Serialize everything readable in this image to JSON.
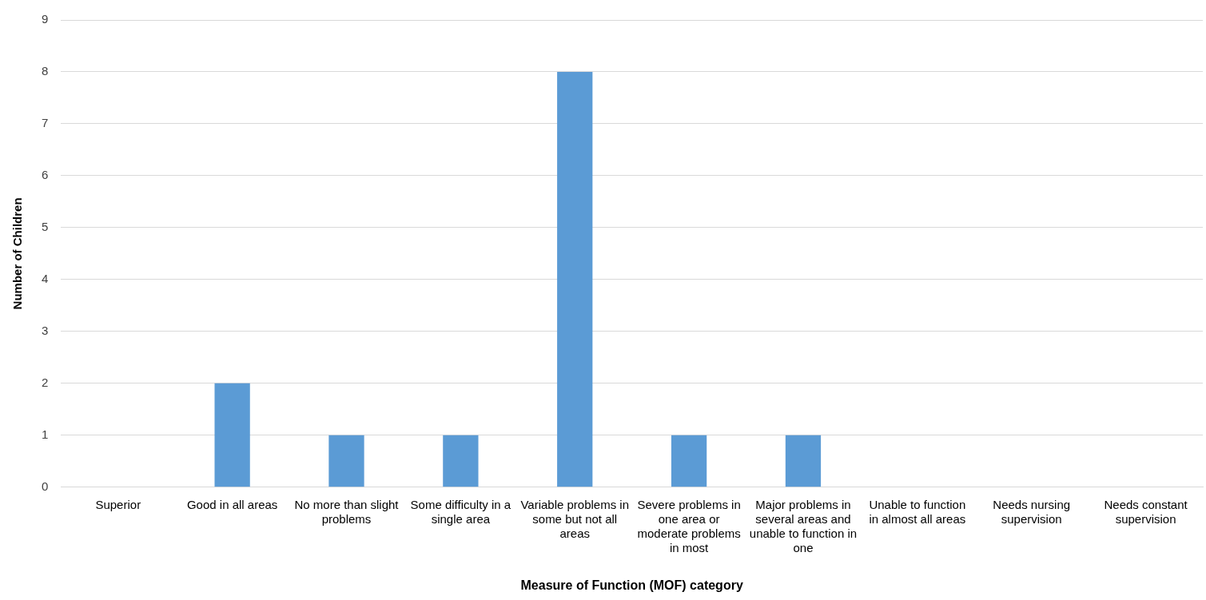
{
  "chart_data": {
    "type": "bar",
    "xlabel": "Measure of Function (MOF) category",
    "ylabel": "Number of Children",
    "categories": [
      "Superior",
      "Good in all areas",
      "No more than slight problems",
      "Some difficulty in a single area",
      "Variable problems in some but not all areas",
      "Severe problems in one area or moderate problems in most",
      "Major problems in several areas and unable to function in one",
      "Unable to function in almost all areas",
      "Needs nursing supervision",
      "Needs constant supervision"
    ],
    "values": [
      0,
      2,
      1,
      1,
      8,
      1,
      1,
      0,
      0,
      0
    ],
    "color": "#5b9bd5",
    "ylim": [
      0,
      9
    ],
    "yticks": [
      0,
      1,
      2,
      3,
      4,
      5,
      6,
      7,
      8,
      9
    ],
    "grid": "y",
    "legend": false
  }
}
